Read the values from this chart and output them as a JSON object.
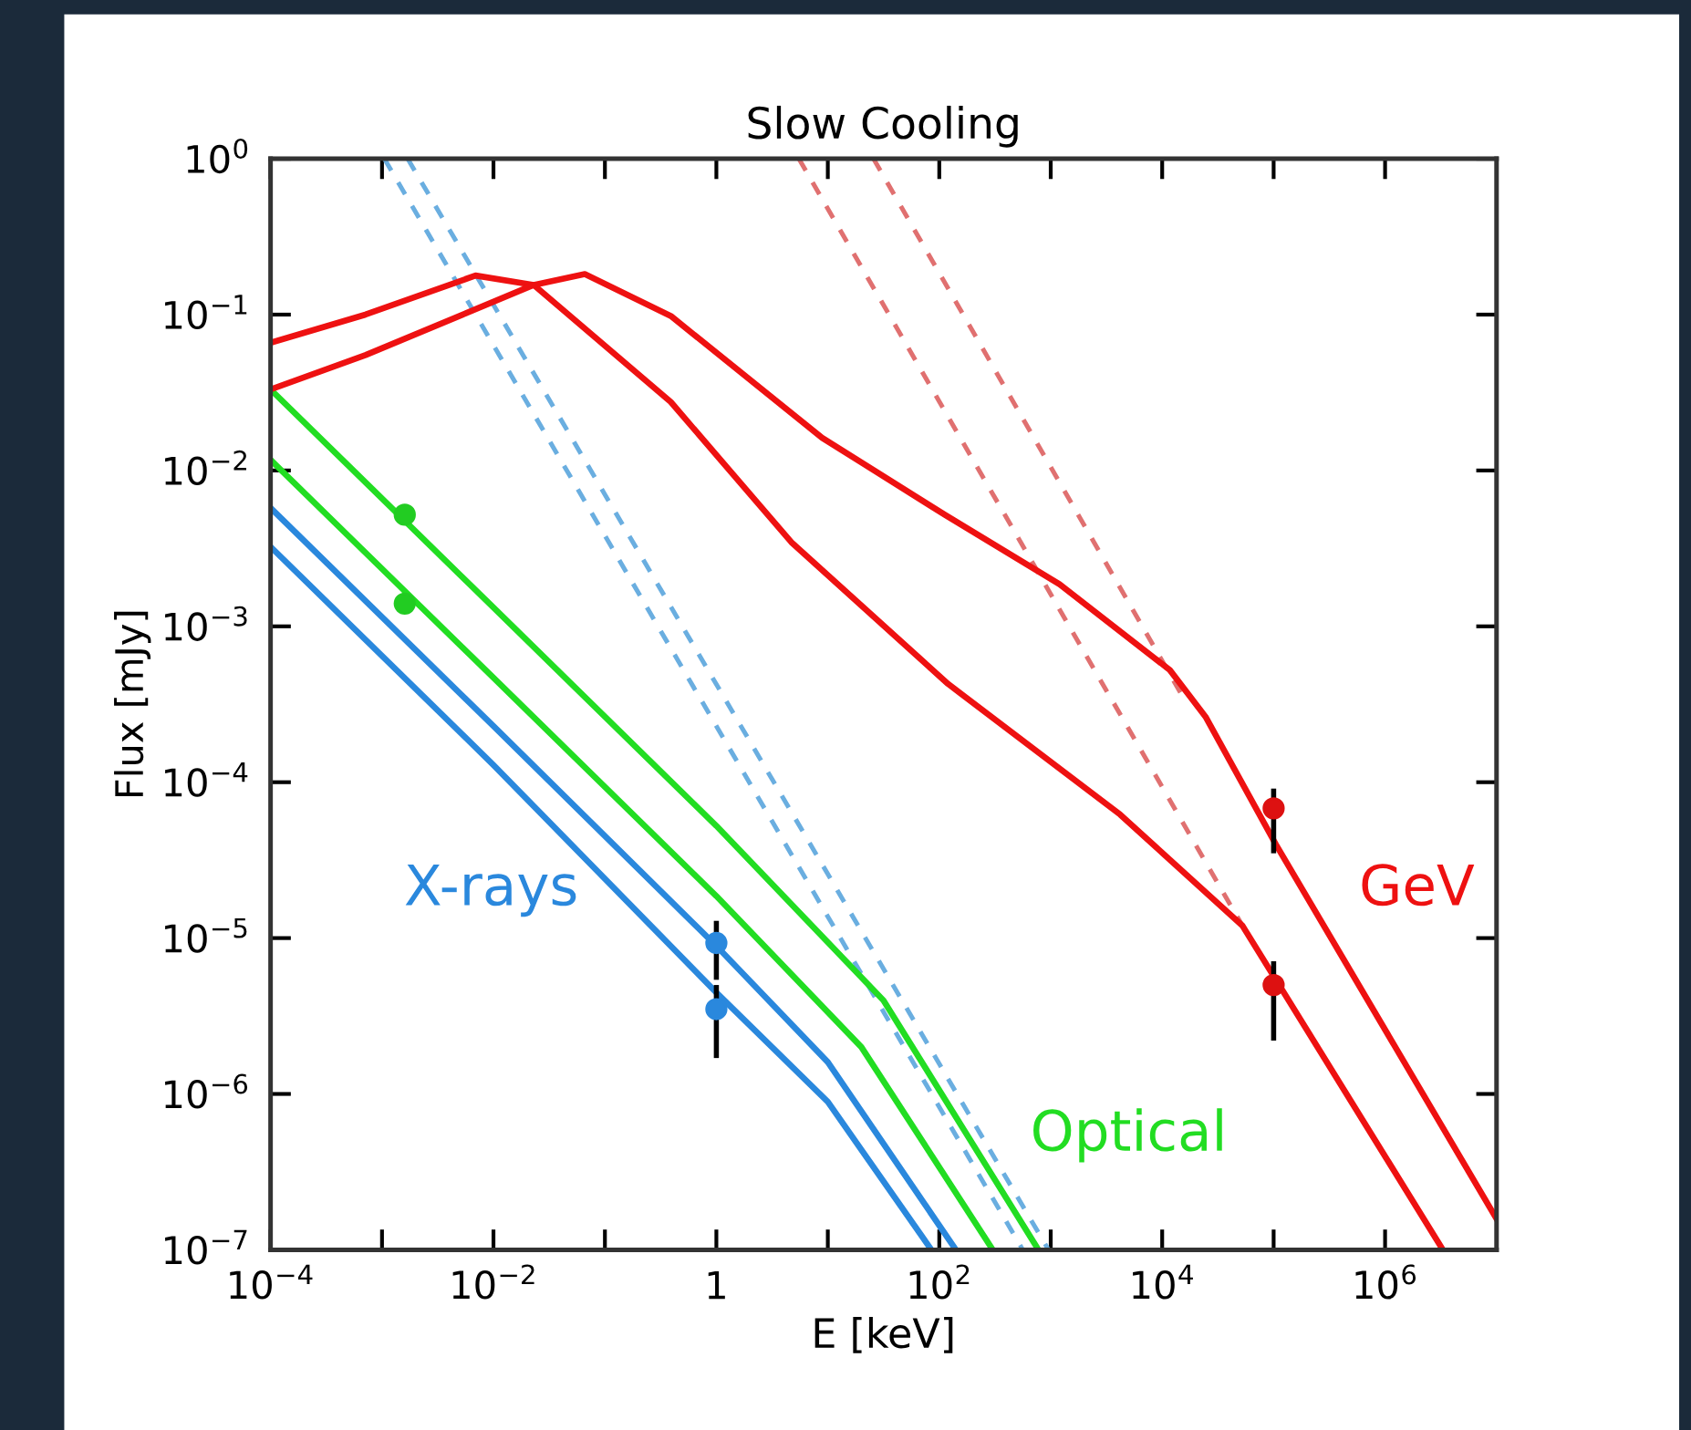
{
  "chart_data": {
    "type": "line",
    "title": "Slow Cooling",
    "xlabel": "E [keV]",
    "ylabel": "Flux [mJy]",
    "log": "xy",
    "xlim": [
      0.0001,
      10000000
    ],
    "ylim": [
      1e-07,
      1
    ],
    "xticks": [
      {
        "value": 0.0001,
        "label": "10$^{−4}$"
      },
      {
        "value": 0.001,
        "label": null
      },
      {
        "value": 0.01,
        "label": "10$^{−2}$"
      },
      {
        "value": 0.1,
        "label": null
      },
      {
        "value": 1,
        "label": "1"
      },
      {
        "value": 10,
        "label": null
      },
      {
        "value": 100,
        "label": "10$^{2}$"
      },
      {
        "value": 1000,
        "label": null
      },
      {
        "value": 10000,
        "label": "10$^{4}$"
      },
      {
        "value": 100000,
        "label": null
      },
      {
        "value": 1000000,
        "label": "10$^{6}$"
      }
    ],
    "yticks": [
      {
        "value": 1e-07,
        "label": "10$^{−7}$"
      },
      {
        "value": 1e-06,
        "label": "10$^{−6}$"
      },
      {
        "value": 1e-05,
        "label": "10$^{−5}$"
      },
      {
        "value": 0.0001,
        "label": "10$^{−4}$"
      },
      {
        "value": 0.001,
        "label": "10$^{−3}$"
      },
      {
        "value": 0.01,
        "label": "10$^{−2}$"
      },
      {
        "value": 0.1,
        "label": "10$^{−1}$"
      },
      {
        "value": 1,
        "label": "10$^{0}$"
      }
    ],
    "grid": false,
    "series": [
      {
        "type": "line",
        "line_style": "dashed",
        "color": "#6aaee0",
        "x": [
          0.00105,
          562
        ],
        "values": [
          1,
          1e-07
        ]
      },
      {
        "type": "line",
        "line_style": "dashed",
        "color": "#6aaee0",
        "x": [
          0.0017,
          955
        ],
        "values": [
          1,
          1e-07
        ]
      },
      {
        "type": "line",
        "line_style": "dashed",
        "color": "#e07070",
        "x": [
          5.5,
          52500
        ],
        "values": [
          1,
          1.2e-05
        ]
      },
      {
        "type": "line",
        "line_style": "dashed",
        "color": "#e07070",
        "x": [
          25.7,
          15800
        ],
        "values": [
          1,
          0.00034
        ]
      },
      {
        "type": "line",
        "line_style": "solid",
        "color": "#2a88dd",
        "x": [
          0.0001,
          0.01,
          1,
          10,
          85
        ],
        "values": [
          0.00324,
          0.000129,
          4.47e-06,
          8.9e-07,
          1e-07
        ]
      },
      {
        "name": "X-rays",
        "line_style": "solid",
        "color": "#2a88dd",
        "x": [
          0.0001,
          0.01,
          1,
          10,
          141
        ],
        "values": [
          0.00575,
          0.000229,
          8.9e-06,
          1.6e-06,
          1e-07
        ]
      },
      {
        "type": "line",
        "line_style": "solid",
        "color": "#22dd22",
        "x": [
          0.0001,
          0.01,
          1,
          20,
          302
        ],
        "values": [
          0.0117,
          0.000468,
          1.86e-05,
          2e-06,
          1e-07
        ]
      },
      {
        "name": "Optical",
        "line_style": "solid",
        "color": "#22dd22",
        "x": [
          0.0001,
          0.01,
          1,
          31.6,
          776
        ],
        "values": [
          0.0331,
          0.00132,
          5.25e-05,
          3.98e-06,
          1e-07
        ]
      },
      {
        "type": "line",
        "line_style": "solid",
        "color": "#ee1111",
        "x": [
          0.0001,
          0.00071,
          0.0069,
          0.023,
          0.39,
          4.7,
          120,
          4200,
          52500,
          112000,
          3300000
        ],
        "values": [
          0.066,
          0.1,
          0.178,
          0.155,
          0.0275,
          0.00347,
          0.000427,
          6.2e-05,
          1.2e-05,
          5e-06,
          1e-07
        ]
      },
      {
        "name": "GeV",
        "line_style": "solid",
        "color": "#ee1111",
        "x": [
          0.0001,
          0.00071,
          0.023,
          0.066,
          0.39,
          8.9,
          112,
          1200,
          11700,
          24500,
          105000,
          10000000
        ],
        "values": [
          0.0331,
          0.055,
          0.155,
          0.182,
          0.098,
          0.0162,
          0.0052,
          0.00186,
          0.000525,
          0.000263,
          3.98e-05,
          1.58e-07
        ]
      },
      {
        "type": "scatter",
        "marker": "circle",
        "color": "#22cc22",
        "x": [
          0.0016,
          0.0016
        ],
        "values": [
          0.0052,
          0.0014
        ]
      },
      {
        "type": "scatter",
        "marker": "circle",
        "color": "#2a88dd",
        "x": [
          1,
          1
        ],
        "values": [
          9.3e-06,
          3.5e-06
        ],
        "errors": [
          [
            5.4e-06,
            1.29e-05
          ],
          [
            1.7e-06,
            5e-06
          ]
        ]
      },
      {
        "type": "scatter",
        "marker": "circle",
        "color": "#dd1111",
        "x": [
          100000,
          100000
        ],
        "values": [
          6.8e-05,
          5e-06
        ],
        "errors": [
          [
            3.5e-05,
            9.1e-05
          ],
          [
            2.2e-06,
            7.1e-06
          ]
        ]
      }
    ]
  }
}
